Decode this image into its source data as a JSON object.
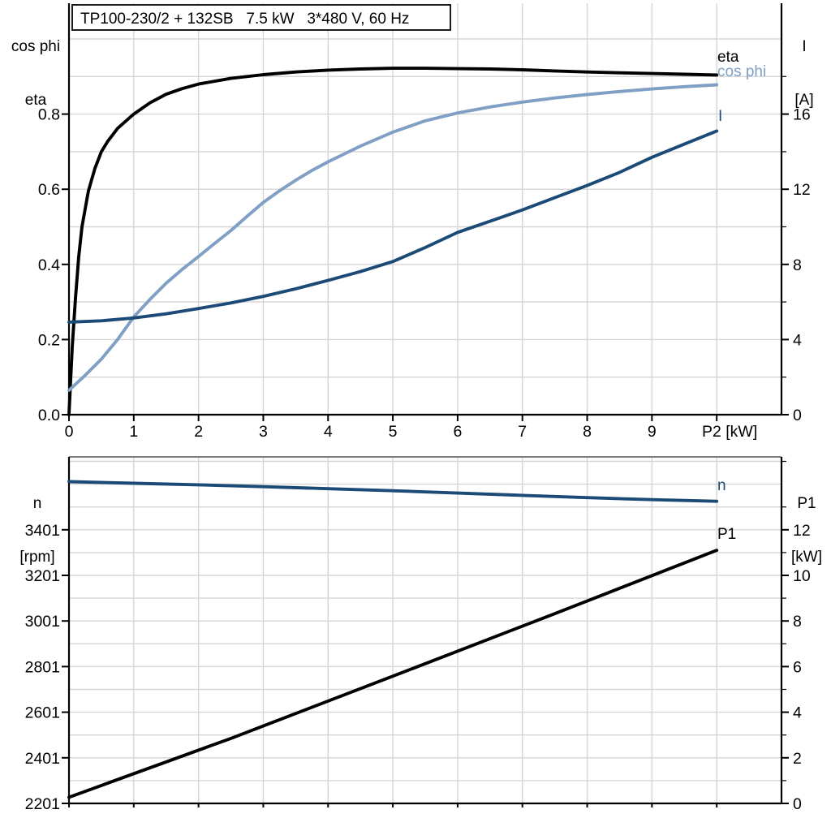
{
  "title_box": {
    "text": "TP100-230/2 + 132SB   7.5 kW   3*480 V, 60 Hz"
  },
  "colors": {
    "black": "#000000",
    "dark_blue": "#1b4a77",
    "light_blue": "#7f9fc4",
    "grid": "#d5d5d5",
    "axis": "#000000",
    "top_border_bottom_chart": "#7d7d7d"
  },
  "chart_data": [
    {
      "id": "motor-electrical",
      "type": "line",
      "x_axis": {
        "min": 0,
        "max": 11,
        "ticks": [
          0,
          1,
          2,
          3,
          4,
          5,
          6,
          7,
          8,
          9,
          10
        ],
        "tick_labels": [
          "0",
          "1",
          "2",
          "3",
          "4",
          "5",
          "6",
          "7",
          "8",
          "9",
          ""
        ],
        "grid_values": [
          1,
          2,
          3,
          4,
          5,
          6,
          7,
          8,
          9,
          10
        ],
        "axis_label": "P2 [kW]",
        "axis_label_at": 10.2
      },
      "y_left": {
        "title_lines": [
          "cos phi",
          "eta"
        ],
        "min": 0,
        "max": 1.0,
        "ticks": [
          0.0,
          0.2,
          0.4,
          0.6,
          0.8
        ],
        "tick_labels": [
          "0.0",
          "0.2",
          "0.4",
          "0.6",
          "0.8"
        ],
        "grid_values": [
          0.1,
          0.2,
          0.3,
          0.4,
          0.5,
          0.6,
          0.7,
          0.8,
          0.9,
          1.0
        ]
      },
      "y_right": {
        "title_lines": [
          "I",
          "[A]"
        ],
        "min": 0,
        "max": 20,
        "ticks": [
          0,
          4,
          8,
          12,
          16
        ],
        "tick_labels": [
          "0",
          "4",
          "8",
          "12",
          "16"
        ],
        "minor_ticks": [
          2,
          6,
          10,
          14,
          18
        ]
      },
      "series": [
        {
          "name": "eta",
          "axis": "left",
          "color": "black",
          "points": [
            [
              0,
              0
            ],
            [
              0.05,
              0.18
            ],
            [
              0.1,
              0.31
            ],
            [
              0.15,
              0.42
            ],
            [
              0.2,
              0.5
            ],
            [
              0.3,
              0.595
            ],
            [
              0.4,
              0.655
            ],
            [
              0.5,
              0.7
            ],
            [
              0.6,
              0.728
            ],
            [
              0.75,
              0.762
            ],
            [
              1,
              0.8
            ],
            [
              1.25,
              0.83
            ],
            [
              1.5,
              0.853
            ],
            [
              1.75,
              0.868
            ],
            [
              2,
              0.88
            ],
            [
              2.5,
              0.895
            ],
            [
              3,
              0.905
            ],
            [
              3.5,
              0.912
            ],
            [
              4,
              0.917
            ],
            [
              4.5,
              0.92
            ],
            [
              5,
              0.922
            ],
            [
              5.5,
              0.922
            ],
            [
              6,
              0.921
            ],
            [
              6.5,
              0.92
            ],
            [
              7,
              0.918
            ],
            [
              7.5,
              0.915
            ],
            [
              8,
              0.912
            ],
            [
              8.5,
              0.91
            ],
            [
              9,
              0.908
            ],
            [
              9.5,
              0.906
            ],
            [
              10,
              0.904
            ]
          ]
        },
        {
          "name": "cos phi",
          "axis": "left",
          "color": "light_blue",
          "points": [
            [
              0,
              0.065
            ],
            [
              0.25,
              0.105
            ],
            [
              0.5,
              0.148
            ],
            [
              0.75,
              0.2
            ],
            [
              1,
              0.26
            ],
            [
              1.25,
              0.307
            ],
            [
              1.5,
              0.35
            ],
            [
              1.75,
              0.387
            ],
            [
              2,
              0.421
            ],
            [
              2.25,
              0.456
            ],
            [
              2.5,
              0.49
            ],
            [
              2.75,
              0.528
            ],
            [
              3,
              0.565
            ],
            [
              3.25,
              0.596
            ],
            [
              3.5,
              0.624
            ],
            [
              3.75,
              0.65
            ],
            [
              4,
              0.673
            ],
            [
              4.5,
              0.715
            ],
            [
              5,
              0.752
            ],
            [
              5.5,
              0.782
            ],
            [
              6,
              0.803
            ],
            [
              6.5,
              0.819
            ],
            [
              7,
              0.832
            ],
            [
              7.5,
              0.843
            ],
            [
              8,
              0.852
            ],
            [
              8.5,
              0.86
            ],
            [
              9,
              0.867
            ],
            [
              9.5,
              0.873
            ],
            [
              10,
              0.878
            ]
          ]
        },
        {
          "name": "I",
          "axis": "right",
          "color": "dark_blue",
          "points": [
            [
              0,
              4.93
            ],
            [
              0.5,
              5.0
            ],
            [
              1,
              5.15
            ],
            [
              1.5,
              5.37
            ],
            [
              2,
              5.65
            ],
            [
              2.5,
              5.95
            ],
            [
              3,
              6.3
            ],
            [
              3.5,
              6.7
            ],
            [
              4,
              7.15
            ],
            [
              4.5,
              7.62
            ],
            [
              5,
              8.15
            ],
            [
              5.5,
              8.9
            ],
            [
              6,
              9.7
            ],
            [
              6.5,
              10.3
            ],
            [
              7,
              10.9
            ],
            [
              7.5,
              11.55
            ],
            [
              8,
              12.2
            ],
            [
              8.5,
              12.9
            ],
            [
              9,
              13.7
            ],
            [
              9.5,
              14.4
            ],
            [
              10,
              15.1
            ]
          ]
        }
      ]
    },
    {
      "id": "motor-speed-power",
      "type": "line",
      "x_axis": {
        "min": 0,
        "max": 11,
        "ticks": [
          0,
          1,
          2,
          3,
          4,
          5,
          6,
          7,
          8,
          9,
          10
        ],
        "tick_labels": [],
        "grid_values": [
          1,
          2,
          3,
          4,
          5,
          6,
          7,
          8,
          9,
          10
        ],
        "axis_label": "",
        "axis_label_at": null
      },
      "y_left": {
        "title_lines": [
          "n",
          "[rpm]"
        ],
        "min": 2201,
        "max": 3719,
        "ticks": [
          2201,
          2401,
          2601,
          2801,
          3001,
          3201,
          3401
        ],
        "tick_labels": [
          "2201",
          "2401",
          "2601",
          "2801",
          "3001",
          "3201",
          "3401"
        ],
        "grid_values": [
          2301,
          2401,
          2501,
          2601,
          2701,
          2801,
          2901,
          3001,
          3101,
          3201,
          3301,
          3401,
          3501,
          3601,
          3701
        ]
      },
      "y_right": {
        "title_lines": [
          "P1",
          "[kW]"
        ],
        "min": 0,
        "max": 15.2,
        "ticks": [
          0,
          2,
          4,
          6,
          8,
          10,
          12
        ],
        "tick_labels": [
          "0",
          "2",
          "4",
          "6",
          "8",
          "10",
          "12"
        ],
        "minor_ticks": [
          1,
          3,
          5,
          7,
          9,
          11,
          13,
          15
        ]
      },
      "series": [
        {
          "name": "n",
          "axis": "left",
          "color": "dark_blue",
          "points": [
            [
              0,
              3612
            ],
            [
              1,
              3605
            ],
            [
              2,
              3598
            ],
            [
              3,
              3590
            ],
            [
              4,
              3581
            ],
            [
              5,
              3572
            ],
            [
              6,
              3562
            ],
            [
              7,
              3552
            ],
            [
              8,
              3542
            ],
            [
              9,
              3533
            ],
            [
              10,
              3526
            ]
          ]
        },
        {
          "name": "P1",
          "axis": "right",
          "color": "black",
          "points": [
            [
              0,
              0.27
            ],
            [
              2.5,
              2.85
            ],
            [
              5,
              5.58
            ],
            [
              7.5,
              8.32
            ],
            [
              10,
              11.1
            ]
          ]
        }
      ]
    }
  ]
}
